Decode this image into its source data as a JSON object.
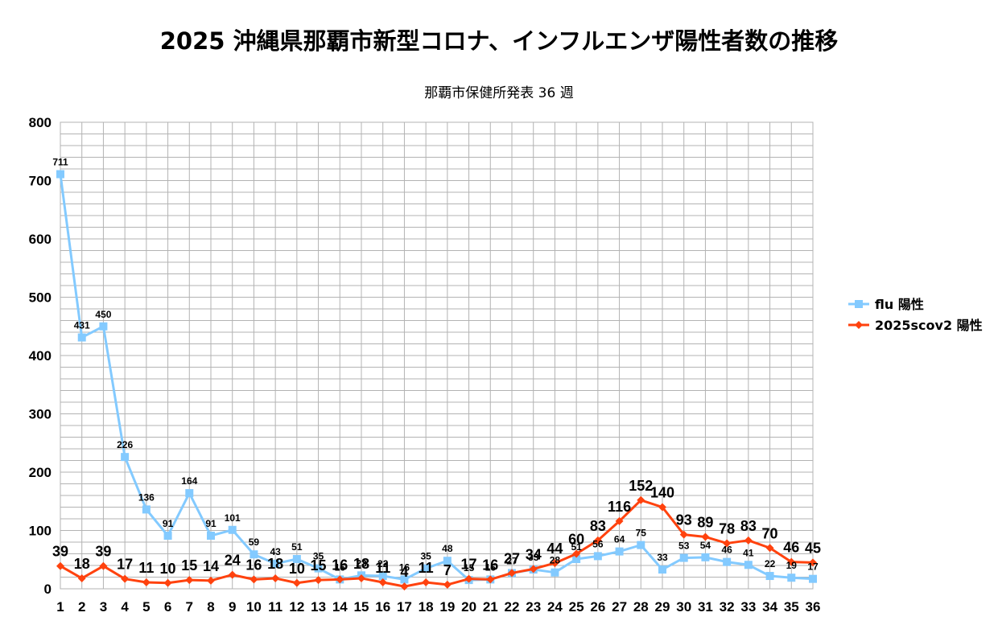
{
  "chart_data": {
    "type": "line",
    "title": "2025 沖縄県那覇市新型コロナ、インフルエンザ陽性者数の推移",
    "subtitle": "那覇市保健所発表 36 週",
    "x": [
      1,
      2,
      3,
      4,
      5,
      6,
      7,
      8,
      9,
      10,
      11,
      12,
      13,
      14,
      15,
      16,
      17,
      18,
      19,
      20,
      21,
      22,
      23,
      24,
      25,
      26,
      27,
      28,
      29,
      30,
      31,
      32,
      33,
      34,
      35,
      36
    ],
    "ylim": [
      0,
      800
    ],
    "yticks": [
      0,
      100,
      200,
      300,
      400,
      500,
      600,
      700,
      800
    ],
    "grid": true,
    "legend_position": "right",
    "series": [
      {
        "name": "flu 陽性",
        "color": "#83caff",
        "marker": "square",
        "values": [
          711,
          431,
          450,
          226,
          136,
          91,
          164,
          91,
          101,
          59,
          43,
          51,
          35,
          16,
          23,
          22,
          16,
          35,
          48,
          15,
          16,
          27,
          33,
          28,
          51,
          56,
          64,
          75,
          33,
          53,
          54,
          46,
          41,
          22,
          19,
          17
        ]
      },
      {
        "name": "2025scov2 陽性",
        "color": "#ff420e",
        "marker": "diamond",
        "values": [
          39,
          18,
          39,
          17,
          11,
          10,
          15,
          14,
          24,
          16,
          18,
          10,
          15,
          16,
          18,
          11,
          4,
          11,
          7,
          17,
          16,
          27,
          34,
          44,
          60,
          83,
          116,
          152,
          140,
          93,
          89,
          78,
          83,
          70,
          46,
          45
        ]
      }
    ]
  }
}
